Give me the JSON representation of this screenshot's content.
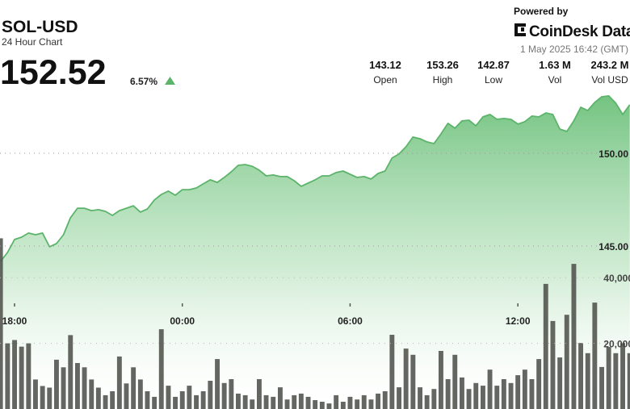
{
  "header": {
    "symbol": "SOL-USD",
    "subtitle": "24 Hour Chart",
    "price": "152.52",
    "change": "6.57%",
    "powered_by": "Powered by",
    "brand": "CoinDesk Data",
    "timestamp": "1 May 2025 16:42 (GMT)",
    "stats": [
      {
        "value": "143.12",
        "label": "Open"
      },
      {
        "value": "153.26",
        "label": "High"
      },
      {
        "value": "142.87",
        "label": "Low"
      },
      {
        "value": "1.63 M",
        "label": "Vol"
      },
      {
        "value": "243.2 M",
        "label": "Vol USD"
      }
    ]
  },
  "chart_data": {
    "type": "area",
    "x": [
      17.5,
      17.75,
      18,
      18.25,
      18.5,
      18.75,
      19,
      19.25,
      19.5,
      19.75,
      20,
      20.25,
      20.5,
      20.75,
      21,
      21.25,
      21.5,
      21.75,
      22,
      22.25,
      22.5,
      22.75,
      23,
      23.25,
      23.5,
      23.75,
      24,
      24.25,
      24.5,
      24.75,
      25,
      25.25,
      25.5,
      25.75,
      26,
      26.25,
      26.5,
      26.75,
      27,
      27.25,
      27.5,
      27.75,
      28,
      28.25,
      28.5,
      28.75,
      29,
      29.25,
      29.5,
      29.75,
      30,
      30.25,
      30.5,
      30.75,
      31,
      31.25,
      31.5,
      31.75,
      32,
      32.25,
      32.5,
      32.75,
      33,
      33.25,
      33.5,
      33.75,
      34,
      34.25,
      34.5,
      34.75,
      35,
      35.25,
      35.5,
      35.75,
      36,
      36.25,
      36.5,
      36.75,
      37,
      37.25,
      37.5,
      37.75,
      38,
      38.25,
      38.5,
      38.75,
      39,
      39.25,
      39.5,
      39.75,
      40
    ],
    "xlim": [
      17.48,
      40.01
    ],
    "xticks": [
      {
        "value": 18,
        "label": "18:00"
      },
      {
        "value": 24,
        "label": "00:00"
      },
      {
        "value": 30,
        "label": "06:00"
      },
      {
        "value": 36,
        "label": "12:00"
      }
    ],
    "ylim": [
      136.22,
      153.91
    ],
    "yticks": [
      {
        "value": 145,
        "label": "145.00"
      },
      {
        "value": 150,
        "label": "150.00"
      }
    ],
    "y2lim": [
      0,
      100000
    ],
    "y2ticks": [
      {
        "value": 20000,
        "label": "20,000"
      },
      {
        "value": 40000,
        "label": "40,000"
      }
    ],
    "grid": true,
    "series": [
      {
        "type": "area",
        "color": "#5cb46a",
        "values": [
          144.17,
          144.65,
          145.35,
          145.48,
          145.7,
          145.61,
          145.7,
          144.96,
          145.13,
          145.61,
          146.52,
          147.04,
          147.04,
          146.91,
          146.96,
          146.87,
          146.65,
          146.91,
          147.04,
          147.17,
          146.83,
          147.0,
          147.48,
          147.78,
          147.96,
          147.74,
          148.04,
          148.04,
          148.13,
          148.35,
          148.57,
          148.43,
          148.7,
          149.0,
          149.35,
          149.39,
          149.3,
          149.09,
          148.78,
          148.83,
          148.74,
          148.74,
          148.52,
          148.22,
          148.39,
          148.57,
          148.78,
          148.78,
          148.96,
          149.04,
          148.87,
          148.7,
          148.74,
          148.61,
          148.91,
          149.04,
          149.74,
          149.96,
          150.35,
          150.87,
          150.78,
          150.61,
          150.52,
          151.04,
          151.61,
          151.35,
          151.74,
          151.78,
          151.48,
          151.96,
          152.09,
          151.83,
          151.87,
          151.83,
          151.57,
          151.7,
          152.0,
          151.96,
          152.17,
          152.09,
          151.3,
          151.17,
          151.74,
          152.48,
          152.3,
          152.74,
          153.04,
          153.09,
          152.7,
          152.09,
          152.61
        ]
      },
      {
        "type": "bar",
        "axis": "y2",
        "color": "#4f524b",
        "values": [
          52000,
          20000,
          21000,
          19000,
          20000,
          9000,
          7000,
          6500,
          15000,
          12700,
          22500,
          14000,
          12700,
          9000,
          6500,
          4200,
          5400,
          16000,
          7800,
          12700,
          9000,
          5400,
          3700,
          24300,
          7100,
          3700,
          5400,
          7100,
          4200,
          5400,
          8600,
          15200,
          7900,
          9100,
          4700,
          4200,
          2900,
          9100,
          4200,
          3700,
          6600,
          2900,
          4200,
          4700,
          3700,
          2700,
          2200,
          1700,
          4200,
          2200,
          3700,
          2900,
          4200,
          2900,
          4700,
          5400,
          22600,
          6600,
          18400,
          16500,
          6600,
          4200,
          6100,
          17700,
          9100,
          16500,
          9600,
          6100,
          7900,
          7100,
          12000,
          7100,
          9100,
          7900,
          10300,
          12000,
          9100,
          15200,
          38100,
          26800,
          15700,
          28700,
          44200,
          20100,
          17000,
          32400,
          12800,
          18900,
          17000,
          20100,
          17000
        ]
      }
    ]
  }
}
